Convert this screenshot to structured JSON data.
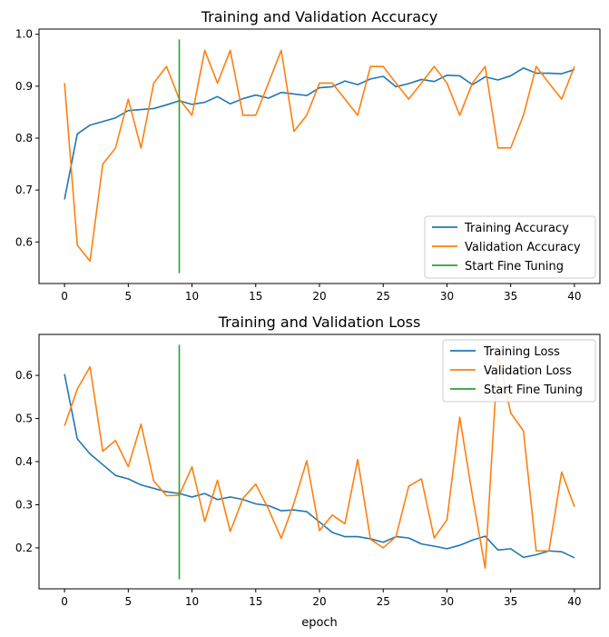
{
  "chart_data": [
    {
      "type": "line",
      "title": "Training and Validation Accuracy",
      "xlabel": "",
      "ylabel": "",
      "xlim": [
        -2,
        42
      ],
      "ylim": [
        0.52,
        1.01
      ],
      "xticks": [
        0,
        5,
        10,
        15,
        20,
        25,
        30,
        35,
        40
      ],
      "yticks": [
        0.6,
        0.7,
        0.8,
        0.9,
        1.0
      ],
      "ytick_labels": [
        "0.6",
        "0.7",
        "0.8",
        "0.9",
        "1.0"
      ],
      "grid": false,
      "legend_position": "lower-right",
      "series": [
        {
          "name": "Training Accuracy",
          "color": "#1f77b4",
          "x": [
            0,
            1,
            2,
            3,
            4,
            5,
            6,
            7,
            8,
            9,
            10,
            11,
            12,
            13,
            14,
            15,
            16,
            17,
            18,
            19,
            20,
            21,
            22,
            23,
            24,
            25,
            26,
            27,
            28,
            29,
            30,
            31,
            32,
            33,
            34,
            35,
            36,
            37,
            38,
            39,
            40
          ],
          "y": [
            0.682,
            0.808,
            0.825,
            0.832,
            0.839,
            0.853,
            0.855,
            0.857,
            0.864,
            0.872,
            0.865,
            0.869,
            0.88,
            0.866,
            0.876,
            0.883,
            0.877,
            0.888,
            0.885,
            0.882,
            0.897,
            0.899,
            0.91,
            0.903,
            0.914,
            0.919,
            0.899,
            0.905,
            0.913,
            0.909,
            0.921,
            0.92,
            0.903,
            0.918,
            0.912,
            0.92,
            0.935,
            0.925,
            0.925,
            0.924,
            0.932
          ]
        },
        {
          "name": "Validation Accuracy",
          "color": "#ff7f0e",
          "x": [
            0,
            1,
            2,
            3,
            4,
            5,
            6,
            7,
            8,
            9,
            10,
            11,
            12,
            13,
            14,
            15,
            16,
            17,
            18,
            19,
            20,
            21,
            22,
            23,
            24,
            25,
            26,
            27,
            28,
            29,
            30,
            31,
            32,
            33,
            34,
            35,
            36,
            37,
            38,
            39,
            40
          ],
          "y": [
            0.906,
            0.594,
            0.563,
            0.75,
            0.781,
            0.875,
            0.781,
            0.906,
            0.938,
            0.875,
            0.844,
            0.969,
            0.906,
            0.969,
            0.844,
            0.844,
            0.906,
            0.969,
            0.813,
            0.844,
            0.906,
            0.906,
            0.875,
            0.844,
            0.938,
            0.938,
            0.906,
            0.875,
            0.906,
            0.938,
            0.906,
            0.844,
            0.906,
            0.938,
            0.781,
            0.781,
            0.844,
            0.938,
            0.906,
            0.875,
            0.938
          ]
        },
        {
          "name": "Start Fine Tuning",
          "color": "#2ca02c",
          "x": [
            9,
            9
          ],
          "y": [
            0.54,
            0.99
          ]
        }
      ]
    },
    {
      "type": "line",
      "title": "Training and Validation Loss",
      "xlabel": "epoch",
      "ylabel": "",
      "xlim": [
        -2,
        42
      ],
      "ylim": [
        0.105,
        0.695
      ],
      "xticks": [
        0,
        5,
        10,
        15,
        20,
        25,
        30,
        35,
        40
      ],
      "yticks": [
        0.2,
        0.3,
        0.4,
        0.5,
        0.6
      ],
      "ytick_labels": [
        "0.2",
        "0.3",
        "0.4",
        "0.5",
        "0.6"
      ],
      "grid": false,
      "legend_position": "upper-right",
      "series": [
        {
          "name": "Training Loss",
          "color": "#1f77b4",
          "x": [
            0,
            1,
            2,
            3,
            4,
            5,
            6,
            7,
            8,
            9,
            10,
            11,
            12,
            13,
            14,
            15,
            16,
            17,
            18,
            19,
            20,
            21,
            22,
            23,
            24,
            25,
            26,
            27,
            28,
            29,
            30,
            31,
            32,
            33,
            34,
            35,
            36,
            37,
            38,
            39,
            40
          ],
          "y": [
            0.603,
            0.453,
            0.418,
            0.393,
            0.368,
            0.36,
            0.346,
            0.338,
            0.33,
            0.326,
            0.318,
            0.326,
            0.312,
            0.318,
            0.312,
            0.302,
            0.298,
            0.286,
            0.288,
            0.284,
            0.26,
            0.236,
            0.226,
            0.226,
            0.221,
            0.213,
            0.226,
            0.223,
            0.209,
            0.204,
            0.198,
            0.206,
            0.218,
            0.227,
            0.195,
            0.198,
            0.178,
            0.184,
            0.193,
            0.191,
            0.177
          ]
        },
        {
          "name": "Validation Loss",
          "color": "#ff7f0e",
          "x": [
            0,
            1,
            2,
            3,
            4,
            5,
            6,
            7,
            8,
            9,
            10,
            11,
            12,
            13,
            14,
            15,
            16,
            17,
            18,
            19,
            20,
            21,
            22,
            23,
            24,
            25,
            26,
            27,
            28,
            29,
            30,
            31,
            32,
            33,
            34,
            35,
            36,
            37,
            38,
            39,
            40
          ],
          "y": [
            0.483,
            0.568,
            0.62,
            0.424,
            0.449,
            0.388,
            0.487,
            0.355,
            0.321,
            0.322,
            0.388,
            0.261,
            0.357,
            0.238,
            0.315,
            0.348,
            0.29,
            0.222,
            0.304,
            0.402,
            0.24,
            0.276,
            0.256,
            0.405,
            0.22,
            0.2,
            0.226,
            0.343,
            0.36,
            0.223,
            0.265,
            0.503,
            0.321,
            0.153,
            0.652,
            0.513,
            0.471,
            0.193,
            0.193,
            0.376,
            0.295
          ]
        },
        {
          "name": "Start Fine Tuning",
          "color": "#2ca02c",
          "x": [
            9,
            9
          ],
          "y": [
            0.127,
            0.671
          ]
        }
      ]
    }
  ]
}
